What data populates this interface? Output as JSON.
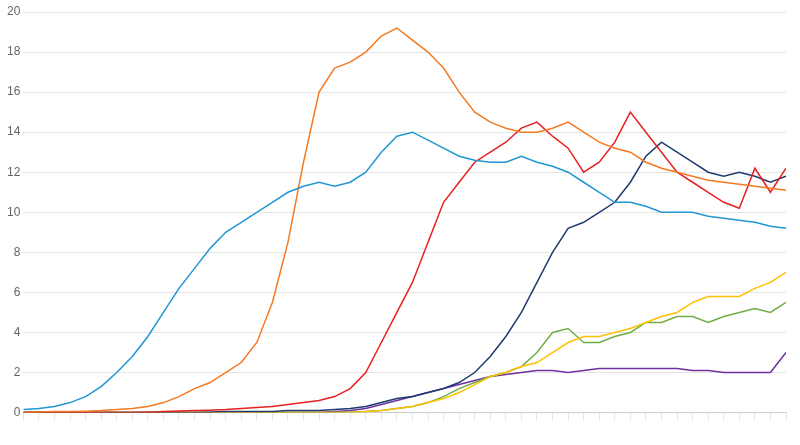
{
  "chart_data": {
    "type": "line",
    "x": [
      0,
      1,
      2,
      3,
      4,
      5,
      6,
      7,
      8,
      9,
      10,
      11,
      12,
      13,
      14,
      15,
      16,
      17,
      18,
      19,
      20,
      21,
      22,
      23,
      24,
      25,
      26,
      27,
      28,
      29,
      30,
      31,
      32,
      33,
      34,
      35,
      36,
      37,
      38,
      39,
      40,
      41,
      42,
      43,
      44,
      45,
      46,
      47,
      48,
      49
    ],
    "xlim": [
      0,
      49
    ],
    "xticks": [
      0,
      1,
      2,
      3,
      4,
      5,
      6,
      7,
      8,
      9,
      10,
      11,
      12,
      13,
      14,
      15,
      16,
      17,
      18,
      19,
      20,
      21,
      22,
      23,
      24,
      25,
      26,
      27,
      28,
      29,
      30,
      31,
      32,
      33,
      34,
      35,
      36,
      37,
      38,
      39,
      40,
      41,
      42,
      43,
      44,
      45,
      46,
      47,
      48,
      49
    ],
    "ylim": [
      0,
      20
    ],
    "yticks": [
      0,
      2,
      4,
      6,
      8,
      10,
      12,
      14,
      16,
      18,
      20
    ],
    "grid": "y",
    "tick_labels": "y",
    "series": [
      {
        "color": "#2196d3",
        "values": [
          0.15,
          0.2,
          0.3,
          0.5,
          0.8,
          1.3,
          2.0,
          2.8,
          3.8,
          5.0,
          6.2,
          7.2,
          8.2,
          9.0,
          9.5,
          10.0,
          10.5,
          11.0,
          11.3,
          11.5,
          11.3,
          11.5,
          12.0,
          13.0,
          13.8,
          14.0,
          13.6,
          13.2,
          12.8,
          12.6,
          12.5,
          12.5,
          12.8,
          12.5,
          12.3,
          12.0,
          11.5,
          11.0,
          10.5,
          10.5,
          10.3,
          10.0,
          10.0,
          10.0,
          9.8,
          9.7,
          9.6,
          9.5,
          9.3,
          9.2
        ]
      },
      {
        "color": "#f47920",
        "values": [
          0.02,
          0.02,
          0.05,
          0.05,
          0.07,
          0.1,
          0.15,
          0.2,
          0.3,
          0.5,
          0.8,
          1.2,
          1.5,
          2.0,
          2.5,
          3.5,
          5.5,
          8.5,
          12.5,
          16.0,
          17.2,
          17.5,
          18.0,
          18.8,
          19.2,
          18.6,
          18.0,
          17.2,
          16.0,
          15.0,
          14.5,
          14.2,
          14.0,
          14.0,
          14.2,
          14.5,
          14.0,
          13.5,
          13.2,
          13.0,
          12.5,
          12.2,
          12.0,
          11.8,
          11.6,
          11.5,
          11.4,
          11.3,
          11.2,
          11.1
        ]
      },
      {
        "color": "#e82020",
        "values": [
          0.0,
          0.0,
          0.0,
          0.0,
          0.0,
          0.0,
          0.0,
          0.0,
          0.02,
          0.05,
          0.08,
          0.1,
          0.12,
          0.15,
          0.2,
          0.25,
          0.3,
          0.4,
          0.5,
          0.6,
          0.8,
          1.2,
          2.0,
          3.5,
          5.0,
          6.5,
          8.5,
          10.5,
          11.5,
          12.5,
          13.0,
          13.5,
          14.2,
          14.5,
          13.8,
          13.2,
          12.0,
          12.5,
          13.5,
          15.0,
          14.0,
          13.0,
          12.0,
          11.5,
          11.0,
          10.5,
          10.2,
          12.2,
          11.0,
          12.2
        ]
      },
      {
        "color": "#1f3a6e",
        "values": [
          0.0,
          0.0,
          0.0,
          0.0,
          0.0,
          0.0,
          0.0,
          0.0,
          0.0,
          0.0,
          0.0,
          0.0,
          0.02,
          0.05,
          0.05,
          0.05,
          0.05,
          0.1,
          0.1,
          0.1,
          0.15,
          0.2,
          0.3,
          0.5,
          0.7,
          0.8,
          1.0,
          1.2,
          1.5,
          2.0,
          2.8,
          3.8,
          5.0,
          6.5,
          8.0,
          9.2,
          9.5,
          10.0,
          10.5,
          11.5,
          12.8,
          13.5,
          13.0,
          12.5,
          12.0,
          11.8,
          12.0,
          11.8,
          11.5,
          11.8
        ]
      },
      {
        "color": "#ffc000",
        "values": [
          0.0,
          0.0,
          0.0,
          0.0,
          0.0,
          0.0,
          0.0,
          0.0,
          0.0,
          0.0,
          0.0,
          0.0,
          0.0,
          0.0,
          0.0,
          0.0,
          0.0,
          0.0,
          0.0,
          0.0,
          0.0,
          0.0,
          0.05,
          0.1,
          0.2,
          0.3,
          0.5,
          0.7,
          1.0,
          1.4,
          1.8,
          2.0,
          2.3,
          2.5,
          3.0,
          3.5,
          3.8,
          3.8,
          4.0,
          4.2,
          4.5,
          4.8,
          5.0,
          5.5,
          5.8,
          5.8,
          5.8,
          6.2,
          6.5,
          7.0
        ]
      },
      {
        "color": "#70ad47",
        "values": [
          0.0,
          0.0,
          0.0,
          0.0,
          0.0,
          0.0,
          0.0,
          0.0,
          0.0,
          0.0,
          0.0,
          0.0,
          0.0,
          0.0,
          0.0,
          0.0,
          0.0,
          0.0,
          0.0,
          0.0,
          0.0,
          0.02,
          0.05,
          0.1,
          0.2,
          0.3,
          0.5,
          0.8,
          1.2,
          1.5,
          1.8,
          2.0,
          2.3,
          3.0,
          4.0,
          4.2,
          3.5,
          3.5,
          3.8,
          4.0,
          4.5,
          4.5,
          4.8,
          4.8,
          4.5,
          4.8,
          5.0,
          5.2,
          5.0,
          5.5
        ]
      },
      {
        "color": "#7030a0",
        "values": [
          0.0,
          0.0,
          0.0,
          0.0,
          0.0,
          0.0,
          0.0,
          0.0,
          0.0,
          0.0,
          0.0,
          0.0,
          0.0,
          0.0,
          0.0,
          0.0,
          0.0,
          0.0,
          0.0,
          0.0,
          0.05,
          0.1,
          0.2,
          0.4,
          0.6,
          0.8,
          1.0,
          1.2,
          1.4,
          1.6,
          1.8,
          1.9,
          2.0,
          2.1,
          2.1,
          2.0,
          2.1,
          2.2,
          2.2,
          2.2,
          2.2,
          2.2,
          2.2,
          2.1,
          2.1,
          2.0,
          2.0,
          2.0,
          2.0,
          3.0
        ]
      }
    ]
  }
}
